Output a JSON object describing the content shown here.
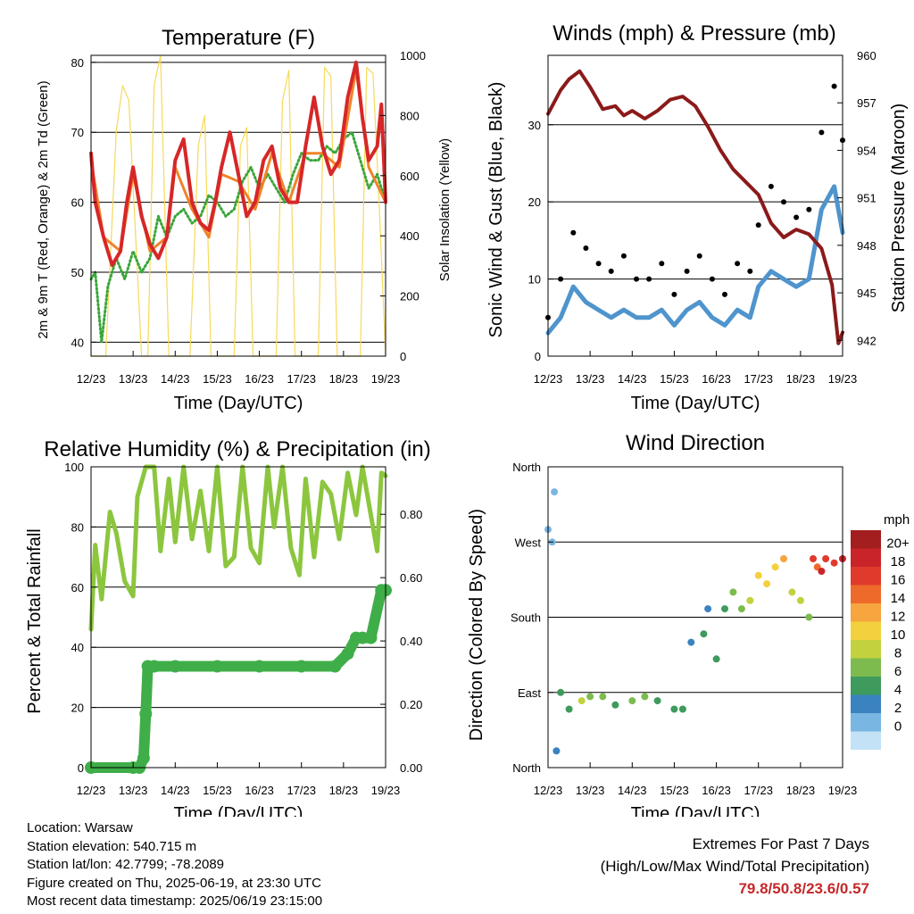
{
  "charts": {
    "temperature": {
      "title": "Temperature (F)",
      "ylabel": "2m & 9m T (Red, Orange) & 2m Td (Green)",
      "y2label": "Solar Insolation (Yellow)",
      "xlabel": "Time (Day/UTC)",
      "xticks": [
        "12/23",
        "13/23",
        "14/23",
        "15/23",
        "16/23",
        "17/23",
        "18/23",
        "19/23"
      ],
      "yticks": [
        "40",
        "50",
        "60",
        "70",
        "80"
      ],
      "y2ticks": [
        "0",
        "200",
        "400",
        "600",
        "800",
        "1000"
      ]
    },
    "winds": {
      "title": "Winds (mph) & Pressure (mb)",
      "ylabel": "Sonic Wind & Gust (Blue, Black)",
      "y2label": "Station Pressure (Maroon)",
      "xlabel": "Time (Day/UTC)",
      "xticks": [
        "12/23",
        "13/23",
        "14/23",
        "15/23",
        "16/23",
        "17/23",
        "18/23",
        "19/23"
      ],
      "yticks": [
        "0",
        "10",
        "20",
        "30"
      ],
      "y2ticks": [
        "942",
        "945",
        "948",
        "951",
        "954",
        "957",
        "960"
      ]
    },
    "humidity": {
      "title": "Relative Humidity (%) & Precipitation (in)",
      "ylabel": "Percent & Total Rainfall",
      "xlabel": "Time (Day/UTC)",
      "xticks": [
        "12/23",
        "13/23",
        "14/23",
        "15/23",
        "16/23",
        "17/23",
        "18/23",
        "19/23"
      ],
      "yticks": [
        "0",
        "20",
        "40",
        "60",
        "80",
        "100"
      ],
      "y2ticks": [
        "0.00",
        "0.20",
        "0.40",
        "0.60",
        "0.80"
      ]
    },
    "direction": {
      "title": "Wind Direction",
      "ylabel": "Direction (Colored By Speed)",
      "xlabel": "Time (Day/UTC)",
      "xticks": [
        "12/23",
        "13/23",
        "14/23",
        "15/23",
        "16/23",
        "17/23",
        "18/23",
        "19/23"
      ],
      "yticks": [
        "North",
        "East",
        "South",
        "West",
        "North"
      ],
      "legend_title": "mph",
      "legend_labels": [
        "20+",
        "18",
        "16",
        "14",
        "12",
        "10",
        "8",
        "6",
        "4",
        "2",
        "0"
      ],
      "legend_colors": [
        "#a31f1f",
        "#c9242a",
        "#e03a2c",
        "#ee6a2a",
        "#f6a53f",
        "#f3d13e",
        "#c2d23e",
        "#7dbb4e",
        "#3f9a5d",
        "#3a83c0",
        "#7ab6e2",
        "#c3e2f6"
      ]
    }
  },
  "chart_data": [
    {
      "type": "line",
      "title": "Temperature (F)",
      "x_range": [
        "12/23",
        "19/23"
      ],
      "ylim": [
        38,
        81
      ],
      "y2lim": [
        0,
        1000
      ],
      "series": [
        {
          "name": "2m T",
          "color": "#d62728",
          "x": [
            0,
            0.1,
            0.3,
            0.5,
            0.7,
            0.85,
            1.0,
            1.2,
            1.4,
            1.6,
            1.8,
            2.0,
            2.2,
            2.4,
            2.6,
            2.8,
            2.95,
            3.1,
            3.3,
            3.5,
            3.7,
            3.9,
            4.1,
            4.3,
            4.5,
            4.7,
            4.9,
            5.1,
            5.3,
            5.5,
            5.7,
            5.9,
            6.1,
            6.3,
            6.45,
            6.6,
            6.8,
            6.9,
            7.0
          ],
          "y": [
            67,
            60,
            55,
            51,
            53,
            60,
            65,
            58,
            54,
            52,
            55,
            66,
            69,
            60,
            57,
            56,
            60,
            65,
            70,
            64,
            58,
            60,
            66,
            68,
            62,
            60,
            60,
            68,
            75,
            68,
            64,
            66,
            75,
            80,
            72,
            66,
            68,
            74,
            60
          ]
        },
        {
          "name": "9m T",
          "color": "#f0832a",
          "x": [
            0,
            0.3,
            0.7,
            1.0,
            1.4,
            1.8,
            2.0,
            2.4,
            2.8,
            3.1,
            3.5,
            3.9,
            4.3,
            4.7,
            5.1,
            5.5,
            5.9,
            6.3,
            6.6,
            7.0
          ],
          "y": [
            66,
            55,
            53,
            64,
            53,
            55,
            65,
            59,
            55,
            64,
            63,
            59,
            67,
            60,
            67,
            67,
            65,
            79,
            65,
            60
          ]
        },
        {
          "name": "2m Td",
          "color": "#3aa63a",
          "x": [
            0,
            0.1,
            0.25,
            0.4,
            0.6,
            0.8,
            1.0,
            1.2,
            1.4,
            1.6,
            1.8,
            2.0,
            2.2,
            2.4,
            2.6,
            2.8,
            3.0,
            3.2,
            3.4,
            3.6,
            3.8,
            4.0,
            4.2,
            4.4,
            4.6,
            4.8,
            5.0,
            5.2,
            5.4,
            5.6,
            5.8,
            6.0,
            6.2,
            6.4,
            6.6,
            6.8,
            7.0
          ],
          "y": [
            49,
            50,
            40,
            48,
            52,
            49,
            53,
            50,
            52,
            58,
            55,
            58,
            59,
            57,
            58,
            61,
            60,
            58,
            59,
            63,
            65,
            62,
            64,
            62,
            60,
            64,
            67,
            66,
            66,
            68,
            67,
            69,
            70,
            66,
            62,
            64,
            60
          ]
        },
        {
          "name": "Solar Insolation",
          "color": "#f7d95a",
          "axis": "y2",
          "x": [
            0,
            0.35,
            0.6,
            0.75,
            0.9,
            1.2,
            1.35,
            1.5,
            1.65,
            1.85,
            2.2,
            2.35,
            2.55,
            2.7,
            2.85,
            3.2,
            3.4,
            3.55,
            3.7,
            3.85,
            4.2,
            4.4,
            4.55,
            4.7,
            4.85,
            5.2,
            5.4,
            5.55,
            5.7,
            5.85,
            6.2,
            6.4,
            6.55,
            6.7,
            6.85,
            7.0
          ],
          "y": [
            0,
            0,
            750,
            900,
            850,
            0,
            0,
            900,
            1000,
            0,
            0,
            0,
            700,
            800,
            0,
            0,
            0,
            700,
            760,
            0,
            0,
            0,
            850,
            950,
            0,
            0,
            0,
            960,
            930,
            0,
            0,
            0,
            960,
            940,
            500,
            0
          ]
        }
      ]
    },
    {
      "type": "line",
      "title": "Winds (mph) & Pressure (mb)",
      "x_range": [
        "12/23",
        "19/23"
      ],
      "ylim": [
        0,
        39
      ],
      "y2lim": [
        941,
        960
      ],
      "series": [
        {
          "name": "Sonic Wind",
          "color": "#4f94cd",
          "x": [
            0,
            0.3,
            0.6,
            0.9,
            1.2,
            1.5,
            1.8,
            2.1,
            2.4,
            2.7,
            3.0,
            3.3,
            3.6,
            3.9,
            4.2,
            4.5,
            4.8,
            5.0,
            5.3,
            5.6,
            5.9,
            6.2,
            6.5,
            6.8,
            7.0
          ],
          "y": [
            3,
            5,
            9,
            7,
            6,
            5,
            6,
            5,
            5,
            6,
            4,
            6,
            7,
            5,
            4,
            6,
            5,
            9,
            11,
            10,
            9,
            10,
            19,
            22,
            16
          ]
        },
        {
          "name": "Gust",
          "color": "#000000",
          "x": [
            0,
            0.3,
            0.6,
            0.9,
            1.2,
            1.5,
            1.8,
            2.1,
            2.4,
            2.7,
            3.0,
            3.3,
            3.6,
            3.9,
            4.2,
            4.5,
            4.8,
            5.0,
            5.3,
            5.6,
            5.9,
            6.2,
            6.5,
            6.8,
            7.0
          ],
          "y": [
            5,
            10,
            16,
            14,
            12,
            11,
            13,
            10,
            10,
            12,
            8,
            11,
            13,
            10,
            8,
            12,
            11,
            17,
            22,
            20,
            18,
            19,
            29,
            35,
            28
          ]
        },
        {
          "name": "Station Pressure",
          "color": "#8b1a1a",
          "axis": "y2",
          "x": [
            0,
            0.3,
            0.5,
            0.75,
            1.0,
            1.3,
            1.6,
            1.8,
            2.0,
            2.3,
            2.6,
            2.9,
            3.2,
            3.5,
            3.8,
            4.1,
            4.4,
            4.7,
            5.0,
            5.3,
            5.6,
            5.9,
            6.2,
            6.5,
            6.75,
            6.9,
            7.0
          ],
          "y": [
            956.3,
            957.8,
            958.5,
            959.0,
            958.0,
            956.6,
            956.8,
            956.2,
            956.5,
            956.0,
            956.5,
            957.2,
            957.4,
            956.8,
            955.5,
            954.0,
            952.8,
            952.0,
            951.2,
            949.4,
            948.5,
            949.0,
            948.7,
            947.8,
            945.5,
            941.8,
            942.5
          ]
        }
      ]
    },
    {
      "type": "line",
      "title": "Relative Humidity (%) & Precipitation (in)",
      "x_range": [
        "12/23",
        "19/23"
      ],
      "ylim": [
        0,
        100
      ],
      "y2lim": [
        0,
        0.95
      ],
      "series": [
        {
          "name": "Relative Humidity",
          "color": "#8cc63f",
          "x": [
            0,
            0.1,
            0.25,
            0.45,
            0.6,
            0.8,
            1.0,
            1.1,
            1.3,
            1.5,
            1.65,
            1.85,
            2.0,
            2.2,
            2.4,
            2.6,
            2.8,
            3.0,
            3.2,
            3.4,
            3.6,
            3.8,
            4.0,
            4.2,
            4.35,
            4.55,
            4.75,
            4.95,
            5.1,
            5.3,
            5.5,
            5.7,
            5.9,
            6.1,
            6.3,
            6.45,
            6.6,
            6.8,
            6.9,
            7.0
          ],
          "y": [
            46,
            74,
            56,
            85,
            78,
            62,
            57,
            90,
            100,
            100,
            72,
            96,
            75,
            100,
            76,
            92,
            72,
            100,
            67,
            70,
            100,
            73,
            68,
            100,
            80,
            100,
            73,
            64,
            96,
            70,
            95,
            91,
            76,
            98,
            84,
            100,
            88,
            72,
            98,
            97
          ]
        },
        {
          "name": "Total Precipitation",
          "color": "#3fae49",
          "axis": "y2",
          "x": [
            0,
            1.0,
            1.15,
            1.25,
            1.3,
            1.35,
            1.5,
            2.0,
            3.0,
            4.0,
            5.0,
            5.8,
            6.1,
            6.3,
            6.45,
            6.65,
            6.9,
            7.0
          ],
          "y": [
            0.0,
            0.0,
            0.0,
            0.03,
            0.17,
            0.32,
            0.32,
            0.32,
            0.32,
            0.32,
            0.32,
            0.32,
            0.36,
            0.41,
            0.41,
            0.41,
            0.56,
            0.56
          ]
        }
      ]
    },
    {
      "type": "scatter",
      "title": "Wind Direction",
      "x_range": [
        "12/23",
        "19/23"
      ],
      "ylim": [
        "North",
        "North"
      ],
      "series": [
        {
          "name": "Wind Direction",
          "x": [
            0,
            0.1,
            0.15,
            0.2,
            0.3,
            0.5,
            0.8,
            1.0,
            1.3,
            1.6,
            2.0,
            2.3,
            2.6,
            3.0,
            3.2,
            3.4,
            3.7,
            3.8,
            4.0,
            4.2,
            4.4,
            4.6,
            4.8,
            5.0,
            5.2,
            5.4,
            5.6,
            5.8,
            6.0,
            6.2,
            6.3,
            6.4,
            6.5,
            6.6,
            6.8,
            7.0
          ],
          "y": [
            285,
            270,
            330,
            20,
            90,
            70,
            80,
            85,
            85,
            75,
            80,
            85,
            80,
            70,
            70,
            150,
            160,
            190,
            130,
            190,
            210,
            190,
            200,
            230,
            220,
            240,
            250,
            210,
            200,
            180,
            250,
            240,
            235,
            250,
            245,
            250
          ],
          "speed": [
            2,
            1,
            2,
            3,
            5,
            6,
            10,
            8,
            7,
            6,
            8,
            7,
            6,
            5,
            5,
            4,
            5,
            3,
            5,
            6,
            7,
            8,
            10,
            12,
            11,
            12,
            13,
            10,
            9,
            8,
            18,
            16,
            19,
            17,
            18,
            20
          ]
        }
      ]
    }
  ],
  "info": {
    "location": "Location: Warsaw",
    "elevation": "Station elevation: 540.715 m",
    "latlon": "Station lat/lon: 42.7799; -78.2089",
    "created": "Figure created on Thu, 2025-06-19, at 23:30 UTC",
    "recent": "Most recent data timestamp: 2025/06/19 23:15:00"
  },
  "extremes": {
    "line1": "Extremes For Past 7 Days",
    "line2": "(High/Low/Max Wind/Total Precipitation)",
    "values": "79.8/50.8/23.6/0.57"
  }
}
